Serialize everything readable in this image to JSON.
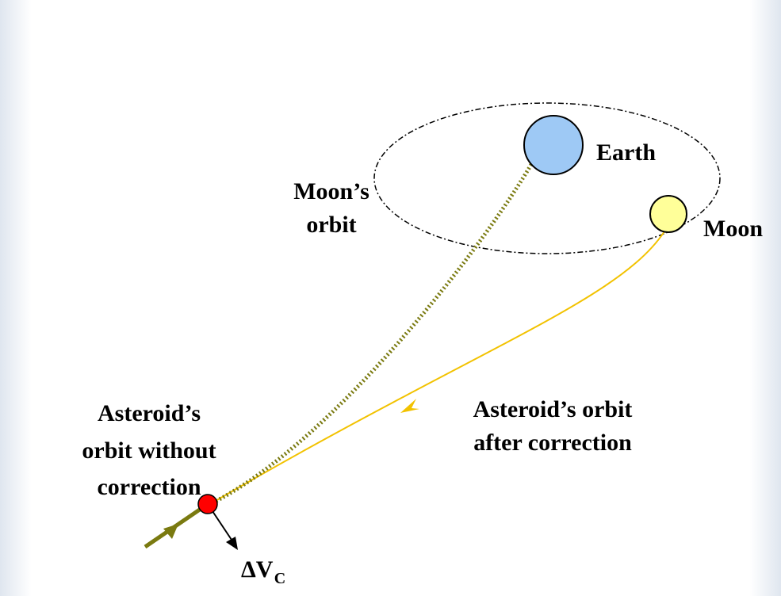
{
  "labels": {
    "earth": "Earth",
    "moon": "Moon",
    "moon_orbit": [
      "Moon’s",
      "orbit"
    ],
    "orbit_without": [
      "Asteroid’s",
      "orbit without",
      "correction"
    ],
    "orbit_after": [
      "Asteroid’s orbit",
      "after correction"
    ],
    "delta_v": {
      "base": "ΔV",
      "subscript": "C"
    }
  }
}
